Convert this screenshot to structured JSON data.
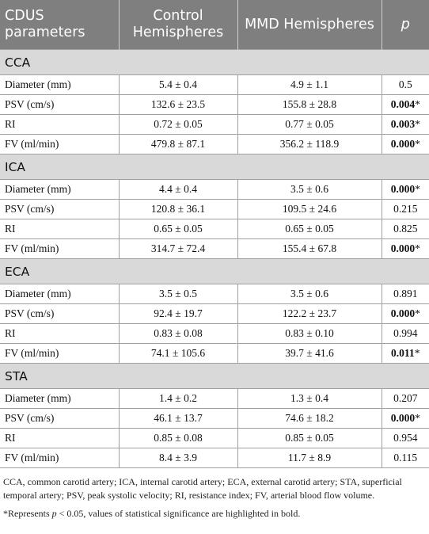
{
  "header": {
    "col0": "CDUS parameters",
    "col1": "Control Hemispheres",
    "col2": "MMD Hemispheres",
    "col3": "p"
  },
  "sections": [
    {
      "title": "CCA",
      "rows": [
        {
          "param": "Diameter (mm)",
          "control": "5.4 ± 0.4",
          "mmd": "4.9 ± 1.1",
          "p": "0.5",
          "sig": false
        },
        {
          "param": "PSV (cm/s)",
          "control": "132.6 ± 23.5",
          "mmd": "155.8 ± 28.8",
          "p": "0.004",
          "sig": true
        },
        {
          "param": "RI",
          "control": "0.72 ± 0.05",
          "mmd": "0.77 ± 0.05",
          "p": "0.003",
          "sig": true
        },
        {
          "param": "FV (ml/min)",
          "control": "479.8 ± 87.1",
          "mmd": "356.2 ± 118.9",
          "p": "0.000",
          "sig": true
        }
      ]
    },
    {
      "title": "ICA",
      "rows": [
        {
          "param": "Diameter (mm)",
          "control": "4.4 ± 0.4",
          "mmd": "3.5 ± 0.6",
          "p": "0.000",
          "sig": true
        },
        {
          "param": "PSV (cm/s)",
          "control": "120.8 ± 36.1",
          "mmd": "109.5 ± 24.6",
          "p": "0.215",
          "sig": false
        },
        {
          "param": "RI",
          "control": "0.65 ± 0.05",
          "mmd": "0.65 ± 0.05",
          "p": "0.825",
          "sig": false
        },
        {
          "param": "FV (ml/min)",
          "control": "314.7 ± 72.4",
          "mmd": "155.4 ± 67.8",
          "p": "0.000",
          "sig": true
        }
      ]
    },
    {
      "title": "ECA",
      "rows": [
        {
          "param": "Diameter (mm)",
          "control": "3.5 ± 0.5",
          "mmd": "3.5 ± 0.6",
          "p": "0.891",
          "sig": false
        },
        {
          "param": "PSV (cm/s)",
          "control": "92.4 ± 19.7",
          "mmd": "122.2 ± 23.7",
          "p": "0.000",
          "sig": true
        },
        {
          "param": "RI",
          "control": "0.83 ± 0.08",
          "mmd": "0.83 ± 0.10",
          "p": "0.994",
          "sig": false
        },
        {
          "param": "FV (ml/min)",
          "control": "74.1 ± 105.6",
          "mmd": "39.7 ± 41.6",
          "p": "0.011",
          "sig": true
        }
      ]
    },
    {
      "title": "STA",
      "rows": [
        {
          "param": "Diameter (mm)",
          "control": "1.4 ± 0.2",
          "mmd": "1.3 ± 0.4",
          "p": "0.207",
          "sig": false
        },
        {
          "param": "PSV (cm/s)",
          "control": "46.1 ± 13.7",
          "mmd": "74.6 ± 18.2",
          "p": "0.000",
          "sig": true
        },
        {
          "param": "RI",
          "control": "0.85 ± 0.08",
          "mmd": "0.85 ± 0.05",
          "p": "0.954",
          "sig": false
        },
        {
          "param": "FV (ml/min)",
          "control": "8.4 ± 3.9",
          "mmd": "11.7 ± 8.9",
          "p": "0.115",
          "sig": false
        }
      ]
    }
  ],
  "sig_marker": "*",
  "footnote": {
    "abbreviations": "CCA, common carotid artery; ICA, internal carotid artery; ECA, external carotid artery; STA, superficial temporal artery; PSV, peak systolic velocity; RI, resistance index; FV, arterial blood flow volume.",
    "sig_prefix": "*Represents ",
    "sig_var": "p",
    "sig_suffix": " < 0.05, values of statistical significance are highlighted in bold."
  }
}
